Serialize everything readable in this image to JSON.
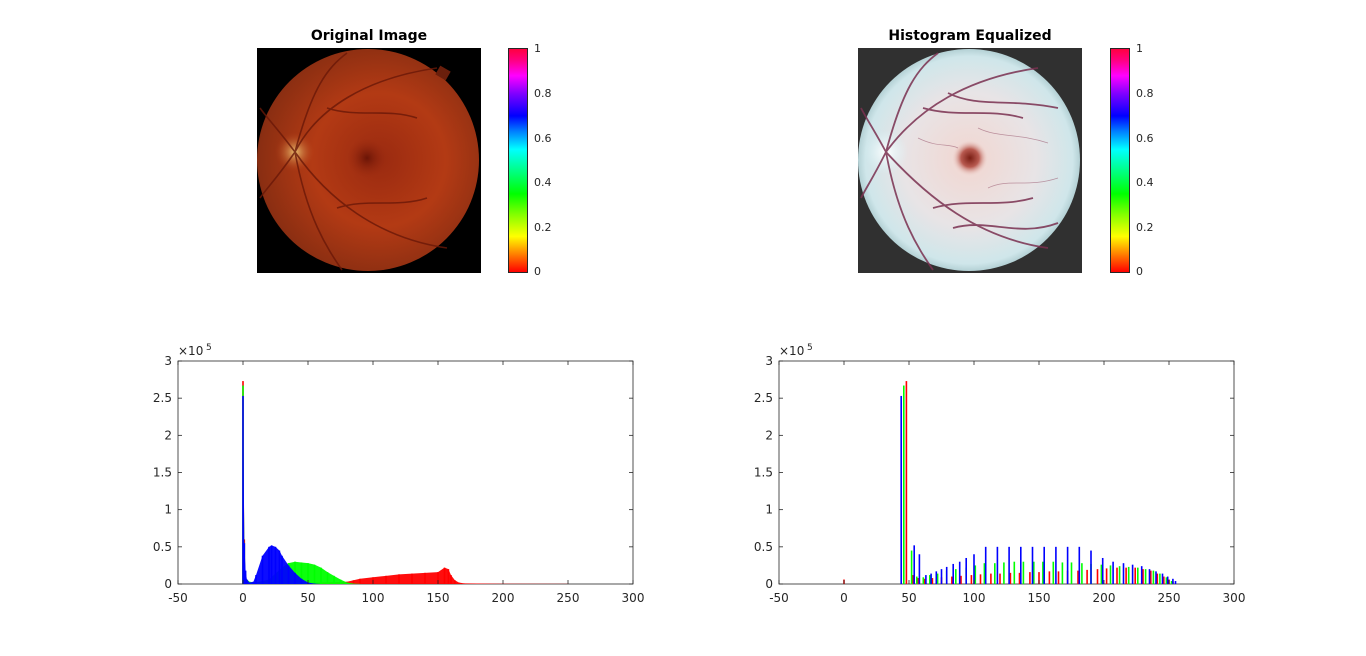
{
  "figure": {
    "left_image_title": "Original Image",
    "right_image_title": "Histogram Equalized",
    "colorbar_ticks": [
      "0",
      "0.2",
      "0.4",
      "0.6",
      "0.8",
      "1"
    ],
    "colors": {
      "red": "#ff0000",
      "green": "#00ff00",
      "blue": "#0000ff",
      "axes": "#262626"
    }
  },
  "chart_data": [
    {
      "type": "bar",
      "title": "",
      "xlabel": "",
      "ylabel": "",
      "xlim": [
        -50,
        300
      ],
      "ylim": [
        0,
        300000
      ],
      "xticks": [
        "-50",
        "0",
        "50",
        "100",
        "150",
        "200",
        "250",
        "300"
      ],
      "yticks": [
        "0",
        "0.5",
        "1",
        "1.5",
        "2",
        "2.5",
        "3"
      ],
      "y_exponent_label": "×10",
      "y_exponent_power": "5",
      "series": [
        {
          "color": "red",
          "x": [
            0,
            1,
            2,
            5,
            10,
            20,
            40,
            60,
            80,
            85,
            90,
            100,
            110,
            120,
            130,
            140,
            150,
            155,
            158,
            160,
            163,
            166,
            170,
            200,
            250
          ],
          "values": [
            273000,
            60000,
            6000,
            2000,
            1000,
            1000,
            1000,
            2000,
            3000,
            5000,
            7000,
            9000,
            11000,
            13000,
            14000,
            15000,
            16000,
            22000,
            20000,
            12000,
            5000,
            2000,
            800,
            300,
            100
          ]
        },
        {
          "color": "green",
          "x": [
            0,
            1,
            2,
            5,
            10,
            20,
            30,
            35,
            40,
            45,
            50,
            55,
            60,
            65,
            70,
            75,
            80,
            85,
            90
          ],
          "values": [
            267000,
            55000,
            8000,
            3000,
            2000,
            6000,
            22000,
            28000,
            30000,
            29000,
            28000,
            26000,
            22000,
            16000,
            11000,
            6000,
            2000,
            500,
            100
          ]
        },
        {
          "color": "blue",
          "x": [
            0,
            1,
            2,
            3,
            5,
            8,
            10,
            15,
            20,
            22,
            25,
            28,
            30,
            35,
            40,
            45,
            50,
            55,
            60
          ],
          "values": [
            253000,
            55000,
            18000,
            6000,
            2000,
            3000,
            12000,
            38000,
            50000,
            52000,
            50000,
            45000,
            38000,
            25000,
            15000,
            7000,
            2000,
            500,
            0
          ]
        }
      ]
    },
    {
      "type": "bar",
      "title": "",
      "xlabel": "",
      "ylabel": "",
      "xlim": [
        -50,
        300
      ],
      "ylim": [
        0,
        300000
      ],
      "xticks": [
        "-50",
        "0",
        "50",
        "100",
        "150",
        "200",
        "250",
        "300"
      ],
      "yticks": [
        "0",
        "0.5",
        "1",
        "1.5",
        "2",
        "2.5",
        "3"
      ],
      "y_exponent_label": "×10",
      "y_exponent_power": "5",
      "series": [
        {
          "color": "red",
          "x": [
            0,
            48,
            53,
            57,
            62,
            68,
            75,
            83,
            90,
            98,
            105,
            113,
            120,
            128,
            135,
            143,
            150,
            158,
            165,
            172,
            180,
            187,
            195,
            202,
            210,
            217,
            224,
            230,
            236,
            241,
            246,
            250,
            253
          ],
          "values": [
            6000,
            273000,
            12000,
            8000,
            7000,
            8000,
            9000,
            10000,
            11000,
            12000,
            13000,
            14000,
            14000,
            15000,
            15000,
            16000,
            16000,
            17000,
            17000,
            18000,
            18000,
            19000,
            20000,
            21000,
            22000,
            22000,
            22000,
            20000,
            18000,
            14000,
            10000,
            6000,
            3000
          ]
        },
        {
          "color": "green",
          "x": [
            46,
            52,
            56,
            61,
            66,
            72,
            79,
            86,
            94,
            101,
            108,
            116,
            123,
            131,
            138,
            146,
            153,
            161,
            168,
            175,
            183,
            190,
            198,
            205,
            212,
            219,
            226,
            232,
            238,
            243,
            248,
            252
          ],
          "values": [
            267000,
            45000,
            10000,
            9000,
            12000,
            14000,
            18000,
            20000,
            22000,
            25000,
            28000,
            28000,
            29000,
            30000,
            30000,
            30000,
            30000,
            30000,
            29000,
            29000,
            28000,
            27000,
            26000,
            25000,
            24000,
            23000,
            22000,
            20000,
            18000,
            14000,
            9000,
            4000
          ]
        },
        {
          "color": "blue",
          "x": [
            44,
            54,
            58,
            63,
            67,
            71,
            75,
            79,
            84,
            89,
            94,
            100,
            109,
            118,
            127,
            136,
            145,
            154,
            163,
            172,
            181,
            190,
            199,
            207,
            215,
            222,
            229,
            235,
            240,
            245,
            249,
            253,
            255
          ],
          "values": [
            253000,
            52000,
            40000,
            12000,
            14000,
            17000,
            20000,
            23000,
            27000,
            30000,
            35000,
            40000,
            50000,
            50000,
            50000,
            50000,
            50000,
            50000,
            50000,
            50000,
            50000,
            45000,
            35000,
            30000,
            28000,
            26000,
            24000,
            20000,
            17000,
            14000,
            10000,
            7000,
            4000
          ]
        }
      ]
    }
  ]
}
